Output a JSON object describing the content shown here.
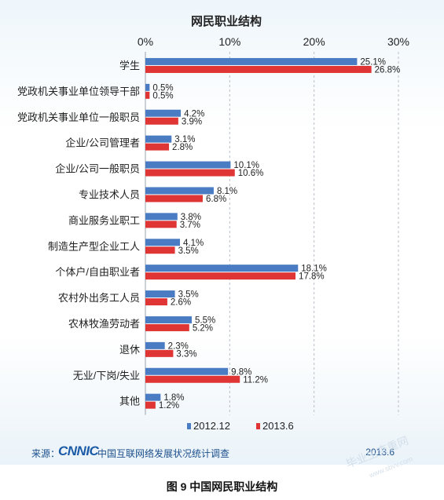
{
  "chart_data": {
    "type": "bar",
    "orientation": "horizontal",
    "title": "网民职业结构",
    "categories": [
      "学生",
      "党政机关事业单位领导干部",
      "党政机关事业单位一般职员",
      "企业/公司管理者",
      "企业/公司一般职员",
      "专业技术人员",
      "商业服务业职工",
      "制造生产型企业工人",
      "个体户/自由职业者",
      "农村外出务工人员",
      "农林牧渔劳动者",
      "退休",
      "无业/下岗/失业",
      "其他"
    ],
    "series": [
      {
        "name": "2012.12",
        "color": "#4a7cc4",
        "values": [
          25.1,
          0.5,
          4.2,
          3.1,
          10.1,
          8.1,
          3.8,
          4.1,
          18.1,
          3.5,
          5.5,
          2.3,
          9.8,
          1.8
        ],
        "labels": [
          "25.1%",
          "0.5%",
          "4.2%",
          "3.1%",
          "10.1%",
          "8.1%",
          "3.8%",
          "4.1%",
          "18.1%",
          "3.5%",
          "5.5%",
          "2.3%",
          "9.8%",
          "1.8%"
        ]
      },
      {
        "name": "2013.6",
        "color": "#e03535",
        "values": [
          26.8,
          0.5,
          3.9,
          2.8,
          10.6,
          6.8,
          3.7,
          3.5,
          17.8,
          2.6,
          5.2,
          3.3,
          11.2,
          1.2
        ],
        "labels": [
          "26.8%",
          "0.5%",
          "3.9%",
          "2.8%",
          "10.6%",
          "6.8%",
          "3.7%",
          "3.5%",
          "17.8%",
          "2.6%",
          "5.2%",
          "3.3%",
          "11.2%",
          "1.2%"
        ]
      }
    ],
    "xlim": [
      0,
      30
    ],
    "ticks": [
      0,
      10,
      20,
      30
    ],
    "tick_labels": [
      "0%",
      "10%",
      "20%",
      "30%"
    ],
    "grid": "dashed vertical",
    "legend_position": "bottom"
  },
  "source": {
    "label": "来源：",
    "logo_text": "CNNIC",
    "org": "中国互联网络发展状况统计调查",
    "date": "2013.6"
  },
  "watermark": {
    "text": "毕业生查重网",
    "sub": "www.sbvv.com"
  },
  "caption": "图 9  中国网民职业结构"
}
